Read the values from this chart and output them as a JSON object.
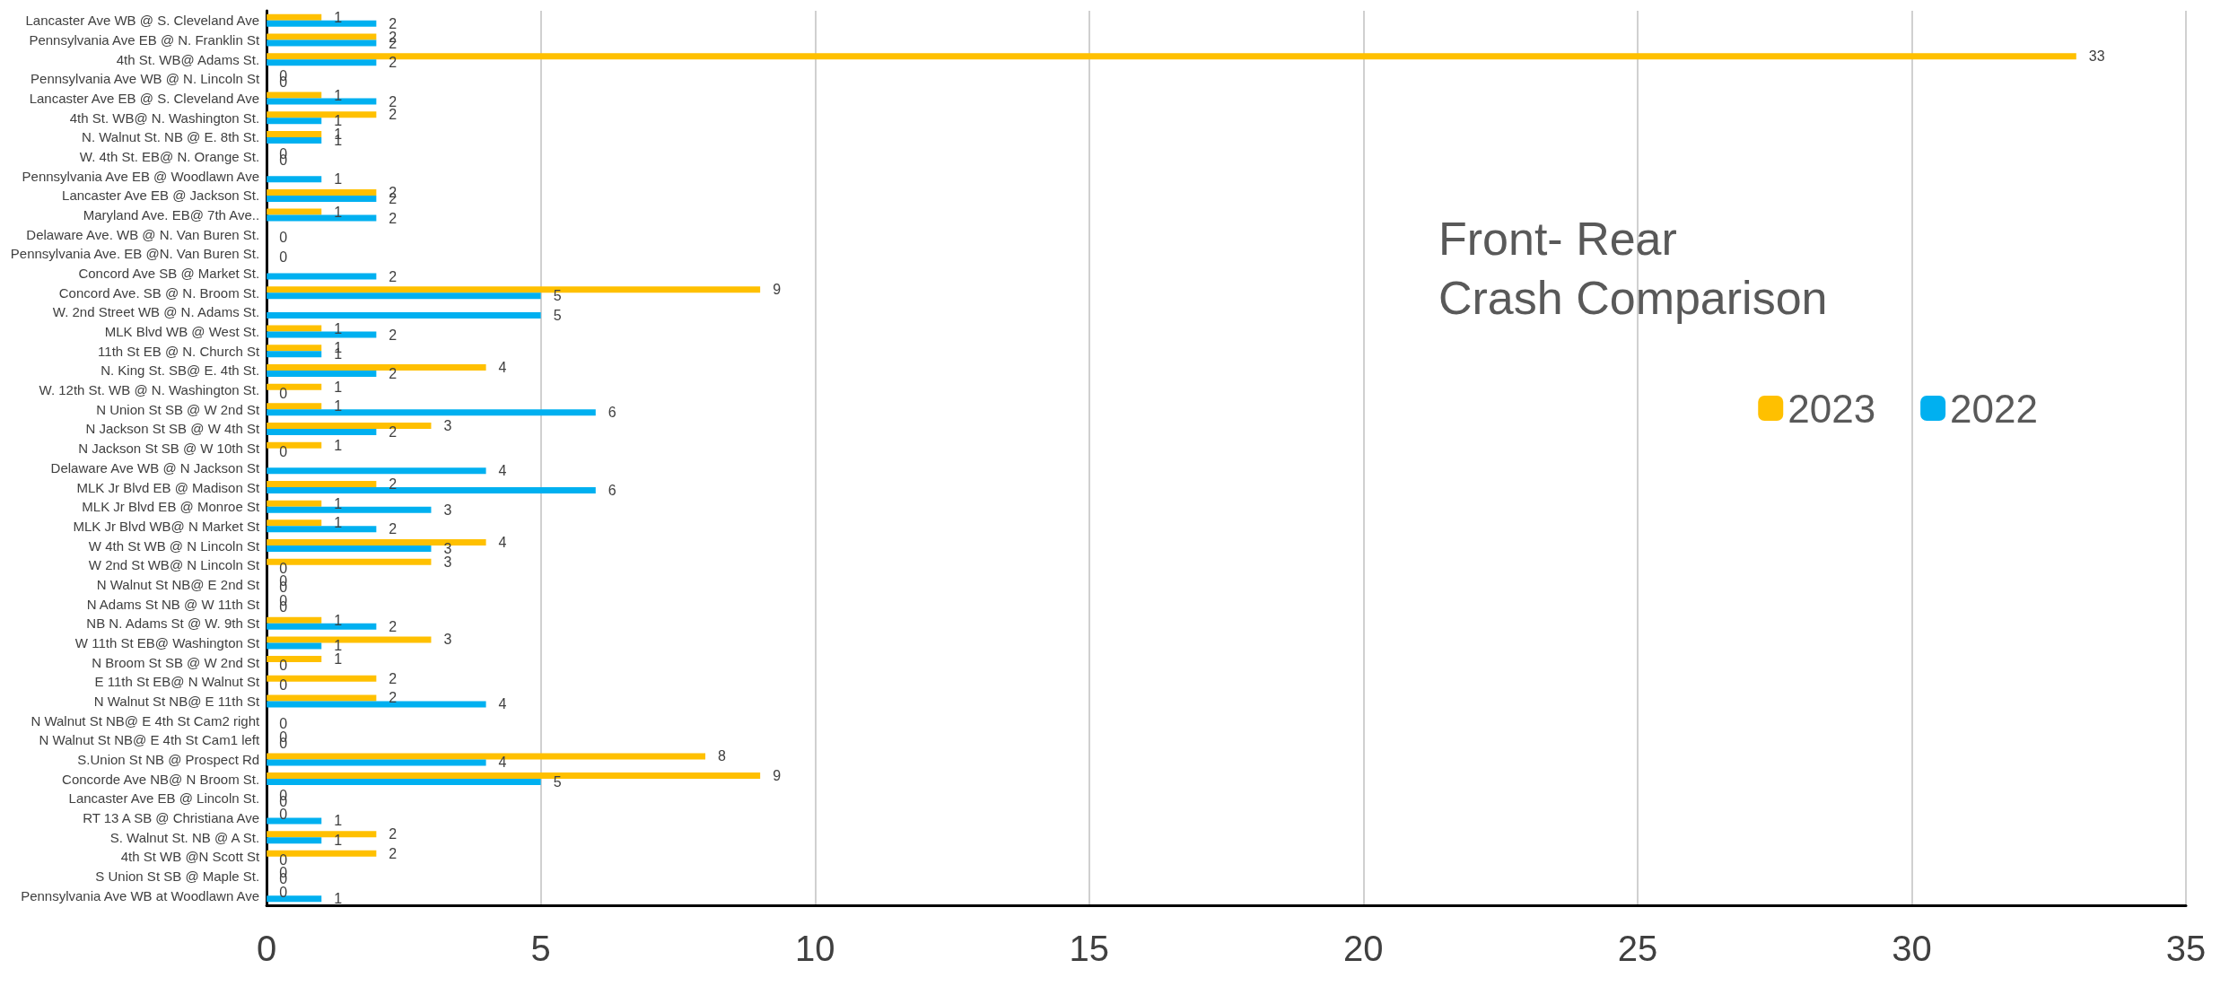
{
  "chart_data": {
    "type": "bar",
    "orientation": "horizontal",
    "title": "Front- Rear\nCrash Comparison",
    "categories": [
      "Lancaster Ave WB @ S. Cleveland Ave",
      "Pennsylvania Ave EB @ N. Franklin St",
      "4th St. WB@ Adams St.",
      "Pennsylvania Ave WB @ N. Lincoln St",
      "Lancaster Ave EB @ S. Cleveland Ave",
      "4th St. WB@ N. Washington St.",
      "N. Walnut St. NB @ E. 8th St.",
      "W. 4th St. EB@ N. Orange St.",
      "Pennsylvania Ave EB @ Woodlawn Ave",
      "Lancaster Ave EB @ Jackson St.",
      "Maryland Ave. EB@ 7th Ave..",
      "Delaware Ave. WB @ N. Van Buren St.",
      "Pennsylvania Ave. EB @N. Van Buren St.",
      "Concord Ave SB @ Market St.",
      "Concord Ave. SB @ N. Broom St.",
      "W. 2nd Street WB @ N. Adams St.",
      "MLK Blvd WB @ West St.",
      "11th St EB @ N. Church St",
      "N. King St. SB@ E. 4th St.",
      "W. 12th St. WB @ N. Washington St.",
      "N Union St SB @ W 2nd St",
      "N Jackson St SB @ W 4th St",
      "N Jackson St SB @ W 10th St",
      "Delaware Ave WB @ N Jackson St",
      "MLK Jr Blvd EB @ Madison St",
      "MLK Jr Blvd EB @ Monroe St",
      "MLK Jr Blvd WB@ N Market St",
      "W 4th St WB @ N Lincoln St",
      "W 2nd St WB@ N Lincoln St",
      "N Walnut St NB@ E 2nd St",
      "N Adams St NB @ W 11th St",
      "NB N. Adams St @ W. 9th St",
      "W 11th St EB@ Washington St",
      "N Broom St SB @ W 2nd St",
      "E 11th St EB@ N Walnut St",
      "N Walnut St NB@ E 11th St",
      "N Walnut St NB@ E 4th St Cam2 right",
      "N Walnut St NB@ E 4th St Cam1 left",
      "S.Union St NB @ Prospect Rd",
      "Concorde Ave NB@ N Broom St.",
      "Lancaster Ave EB @ Lincoln St.",
      "RT 13 A SB @ Christiana Ave",
      "S. Walnut St. NB @ A St.",
      "4th St WB @N Scott St",
      "S Union St SB @ Maple St.",
      "Pennsylvania Ave WB at Woodlawn Ave"
    ],
    "series": [
      {
        "name": "2023",
        "color": "#ffc000",
        "values": [
          1,
          2,
          33,
          0,
          1,
          2,
          1,
          0,
          null,
          2,
          1,
          null,
          null,
          null,
          9,
          null,
          1,
          1,
          4,
          1,
          1,
          3,
          1,
          null,
          2,
          1,
          1,
          4,
          3,
          0,
          0,
          1,
          3,
          1,
          2,
          2,
          null,
          0,
          8,
          9,
          0,
          0,
          2,
          2,
          0,
          0
        ]
      },
      {
        "name": "2022",
        "color": "#00b0f0",
        "values": [
          2,
          2,
          2,
          0,
          2,
          1,
          1,
          0,
          1,
          2,
          2,
          0,
          0,
          2,
          5,
          5,
          2,
          1,
          2,
          0,
          6,
          2,
          0,
          4,
          6,
          3,
          2,
          3,
          0,
          0,
          0,
          2,
          1,
          0,
          0,
          4,
          0,
          0,
          4,
          5,
          0,
          1,
          1,
          0,
          0,
          1
        ]
      }
    ],
    "xlim": [
      0,
      35
    ],
    "xticks": [
      0,
      5,
      10,
      15,
      20,
      25,
      30,
      35
    ],
    "grid": "x",
    "legend": "right",
    "data_labels": true
  }
}
